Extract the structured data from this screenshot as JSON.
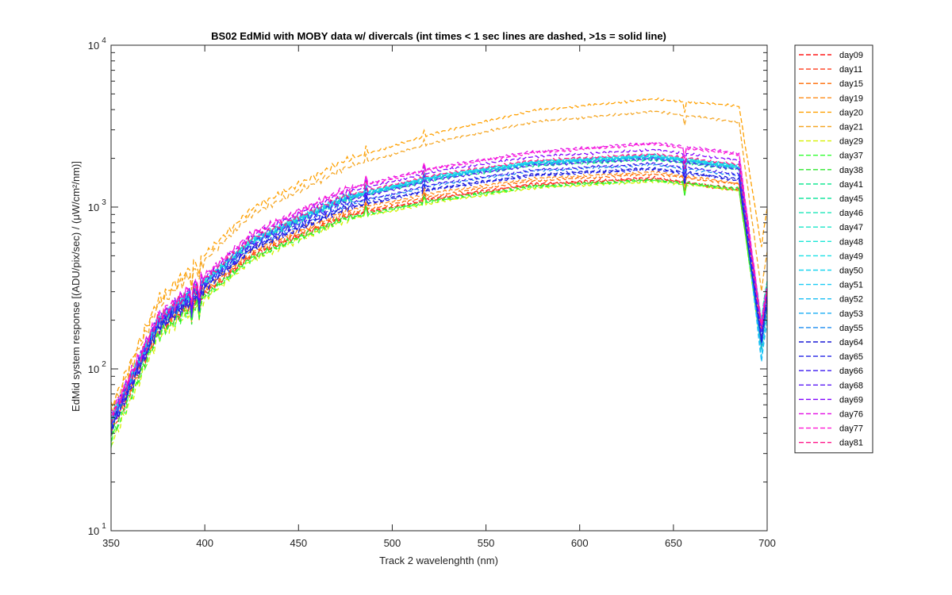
{
  "chart_data": {
    "type": "line",
    "title": "BS02 EdMid with MOBY data w/ divercals (int times < 1 sec lines are dashed, >1s = solid line)",
    "xlabel": "Track 2 wavelenghth (nm)",
    "ylabel": "EdMid system response [(ADU/pix/sec) / (μW/cm²/nm)]",
    "xlim": [
      350,
      700
    ],
    "ylim": [
      10,
      10000
    ],
    "y_scale": "log",
    "x_ticks": [
      "350",
      "400",
      "450",
      "500",
      "550",
      "600",
      "650",
      "700"
    ],
    "y_ticks": [
      {
        "base": "10",
        "exp": "1"
      },
      {
        "base": "10",
        "exp": "2"
      },
      {
        "base": "10",
        "exp": "3"
      },
      {
        "base": "10",
        "exp": "4"
      }
    ],
    "grid": false,
    "legend_position": "outside-right",
    "line_style": "dashed",
    "series": [
      {
        "name": "day09",
        "color": "#ff1a1a",
        "values": [
          42,
          170,
          505,
          880,
          1150,
          1390,
          1520,
          1290,
          140
        ]
      },
      {
        "name": "day11",
        "color": "#ff3b1a",
        "values": [
          40,
          168,
          500,
          870,
          1130,
          1370,
          1490,
          1260,
          150
        ]
      },
      {
        "name": "day15",
        "color": "#ff6a00",
        "values": [
          44,
          175,
          520,
          910,
          1190,
          1450,
          1600,
          1380,
          160
        ]
      },
      {
        "name": "day19",
        "color": "#ff8c1a",
        "values": [
          45,
          180,
          540,
          950,
          1240,
          1500,
          1650,
          1400,
          170
        ]
      },
      {
        "name": "day20",
        "color": "#ffa000",
        "values": [
          58,
          265,
          980,
          1950,
          2900,
          3950,
          4650,
          4200,
          560
        ]
      },
      {
        "name": "day21",
        "color": "#f5a623",
        "values": [
          55,
          245,
          900,
          1750,
          2550,
          3350,
          3900,
          3350,
          300
        ]
      },
      {
        "name": "day29",
        "color": "#d6f000",
        "values": [
          34,
          155,
          470,
          830,
          1080,
          1310,
          1440,
          1270,
          130
        ]
      },
      {
        "name": "day37",
        "color": "#33ff33",
        "values": [
          36,
          160,
          480,
          845,
          1100,
          1330,
          1460,
          1280,
          132
        ]
      },
      {
        "name": "day38",
        "color": "#2ee82e",
        "values": [
          38,
          165,
          490,
          860,
          1120,
          1350,
          1480,
          1300,
          135
        ]
      },
      {
        "name": "day41",
        "color": "#00e68a",
        "values": [
          46,
          190,
          600,
          1110,
          1490,
          1800,
          1960,
          1700,
          200
        ]
      },
      {
        "name": "day45",
        "color": "#19e6a0",
        "values": [
          47,
          192,
          610,
          1120,
          1510,
          1830,
          2000,
          1730,
          190
        ]
      },
      {
        "name": "day46",
        "color": "#1ae6b8",
        "values": [
          48,
          195,
          620,
          1140,
          1530,
          1860,
          2030,
          1760,
          200
        ]
      },
      {
        "name": "day47",
        "color": "#1ae6c8",
        "values": [
          48,
          196,
          625,
          1150,
          1550,
          1880,
          2060,
          1780,
          195
        ]
      },
      {
        "name": "day48",
        "color": "#1ae6d6",
        "values": [
          49,
          198,
          630,
          1160,
          1570,
          1900,
          2090,
          1800,
          180
        ]
      },
      {
        "name": "day49",
        "color": "#1ae0e6",
        "values": [
          49,
          198,
          630,
          1165,
          1575,
          1910,
          2100,
          1810,
          170
        ]
      },
      {
        "name": "day50",
        "color": "#1ad6f0",
        "values": [
          48,
          196,
          620,
          1150,
          1560,
          1890,
          2070,
          1780,
          150
        ]
      },
      {
        "name": "day51",
        "color": "#1accf5",
        "values": [
          47,
          194,
          610,
          1140,
          1540,
          1870,
          2050,
          1760,
          120
        ]
      },
      {
        "name": "day52",
        "color": "#1abef5",
        "values": [
          47,
          193,
          605,
          1130,
          1530,
          1860,
          2040,
          1750,
          110
        ]
      },
      {
        "name": "day53",
        "color": "#19adf5",
        "values": [
          46,
          190,
          600,
          1120,
          1520,
          1840,
          2020,
          1730,
          130
        ]
      },
      {
        "name": "day55",
        "color": "#1a8cf0",
        "values": [
          44,
          185,
          570,
          1030,
          1380,
          1670,
          1830,
          1560,
          140
        ]
      },
      {
        "name": "day64",
        "color": "#1a1ad6",
        "values": [
          43,
          180,
          555,
          990,
          1320,
          1590,
          1740,
          1490,
          145
        ]
      },
      {
        "name": "day65",
        "color": "#2020e6",
        "values": [
          42,
          178,
          548,
          975,
          1300,
          1560,
          1710,
          1460,
          150
        ]
      },
      {
        "name": "day66",
        "color": "#3b1af0",
        "values": [
          45,
          186,
          575,
          1040,
          1400,
          1690,
          1860,
          1590,
          160
        ]
      },
      {
        "name": "day68",
        "color": "#5a1af5",
        "values": [
          46,
          192,
          600,
          1100,
          1490,
          1810,
          1990,
          1710,
          170
        ]
      },
      {
        "name": "day69",
        "color": "#8000ff",
        "values": [
          50,
          205,
          660,
          1230,
          1680,
          2050,
          2260,
          1940,
          180
        ]
      },
      {
        "name": "day76",
        "color": "#e61ae6",
        "values": [
          52,
          210,
          690,
          1300,
          1780,
          2200,
          2500,
          2150,
          190
        ]
      },
      {
        "name": "day77",
        "color": "#ff1ad6",
        "values": [
          51,
          208,
          680,
          1280,
          1750,
          2160,
          2450,
          2100,
          185
        ]
      },
      {
        "name": "day81",
        "color": "#ff1a8c",
        "values": [
          49,
          200,
          640,
          1180,
          1600,
          1940,
          2130,
          1830,
          175
        ]
      }
    ]
  }
}
